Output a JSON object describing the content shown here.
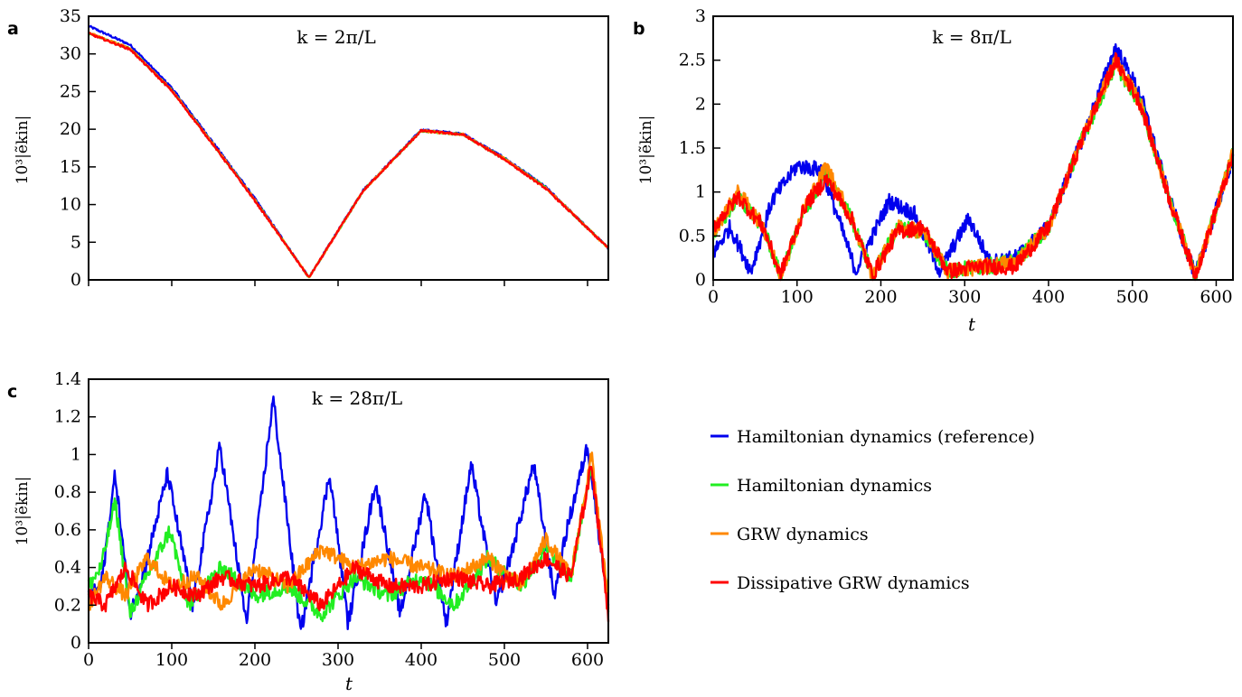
{
  "legend": [
    {
      "label": "Hamiltonian dynamics (reference)",
      "color": "#0000ee"
    },
    {
      "label": "Hamiltonian dynamics",
      "color": "#22ee22"
    },
    {
      "label": "GRW dynamics",
      "color": "#ff8800"
    },
    {
      "label": "Dissipative GRW dynamics",
      "color": "#ff0000"
    }
  ],
  "chart_data": [
    {
      "panel": "a",
      "type": "line",
      "annotation": "k = 2π/L",
      "ylabel": "10³|ẽkin|",
      "xlabel": "",
      "xlim": [
        0,
        625
      ],
      "ylim": [
        0,
        35
      ],
      "yticks": [
        0,
        5,
        10,
        15,
        20,
        25,
        30,
        35
      ],
      "xticks_labeled": false,
      "series": [
        {
          "name": "Hamiltonian dynamics (reference)",
          "color": "#0000ee",
          "x": [
            0,
            50,
            100,
            150,
            200,
            265,
            330,
            400,
            450,
            500,
            550,
            625
          ],
          "y": [
            33.7,
            31.2,
            25.5,
            18.2,
            10.8,
            0.3,
            11.9,
            19.9,
            19.4,
            16.2,
            12.3,
            4.2
          ]
        },
        {
          "name": "Hamiltonian dynamics",
          "color": "#22ee22",
          "x": [
            0,
            50,
            100,
            150,
            200,
            265,
            330,
            400,
            450,
            500,
            550,
            625
          ],
          "y": [
            32.8,
            30.7,
            25.2,
            18.0,
            10.6,
            0.3,
            11.8,
            19.8,
            19.3,
            16.1,
            12.2,
            4.2
          ]
        },
        {
          "name": "GRW dynamics",
          "color": "#ff8800",
          "x": [
            0,
            50,
            100,
            150,
            200,
            265,
            330,
            400,
            450,
            500,
            550,
            625
          ],
          "y": [
            32.8,
            30.7,
            25.2,
            18.0,
            10.6,
            0.3,
            11.8,
            19.8,
            19.3,
            16.1,
            12.2,
            4.2
          ]
        },
        {
          "name": "Dissipative GRW dynamics",
          "color": "#ff0000",
          "x": [
            0,
            50,
            100,
            150,
            200,
            265,
            330,
            400,
            450,
            500,
            550,
            625
          ],
          "y": [
            32.7,
            30.6,
            25.1,
            17.9,
            10.5,
            0.3,
            11.8,
            19.8,
            19.3,
            16.0,
            12.1,
            4.2
          ]
        }
      ]
    },
    {
      "panel": "b",
      "type": "line",
      "annotation": "k = 8π/L",
      "ylabel": "10³|ẽkin|",
      "xlabel": "t",
      "xlim": [
        0,
        620
      ],
      "ylim": [
        0,
        3
      ],
      "yticks": [
        0,
        0.5,
        1,
        1.5,
        2,
        2.5,
        3
      ],
      "xticks": [
        0,
        100,
        200,
        300,
        400,
        500,
        600
      ],
      "xticks_labeled": true,
      "series": [
        {
          "name": "Hamiltonian dynamics (reference)",
          "color": "#0000ee",
          "x": [
            0,
            20,
            45,
            70,
            100,
            130,
            170,
            210,
            240,
            270,
            305,
            330,
            360,
            400,
            440,
            480,
            510,
            545,
            575,
            600,
            620
          ],
          "y": [
            0.3,
            0.6,
            0.1,
            0.9,
            1.3,
            1.25,
            0.1,
            0.9,
            0.75,
            0.1,
            0.7,
            0.2,
            0.25,
            0.6,
            1.6,
            2.65,
            2.1,
            0.9,
            0.05,
            0.8,
            1.4
          ]
        },
        {
          "name": "Hamiltonian dynamics",
          "color": "#22ee22",
          "x": [
            0,
            30,
            60,
            80,
            110,
            135,
            165,
            190,
            220,
            250,
            280,
            320,
            360,
            400,
            440,
            480,
            510,
            545,
            575,
            600,
            620
          ],
          "y": [
            0.5,
            0.95,
            0.6,
            0.05,
            0.8,
            1.2,
            0.7,
            0.05,
            0.6,
            0.55,
            0.1,
            0.15,
            0.2,
            0.6,
            1.6,
            2.45,
            2.0,
            0.9,
            0.05,
            0.8,
            1.45
          ]
        },
        {
          "name": "GRW dynamics",
          "color": "#ff8800",
          "x": [
            0,
            30,
            60,
            80,
            110,
            135,
            165,
            190,
            220,
            250,
            280,
            320,
            360,
            400,
            440,
            480,
            510,
            545,
            575,
            600,
            620
          ],
          "y": [
            0.55,
            1.0,
            0.6,
            0.05,
            0.85,
            1.3,
            0.7,
            0.05,
            0.6,
            0.55,
            0.1,
            0.15,
            0.2,
            0.6,
            1.6,
            2.5,
            2.0,
            0.9,
            0.05,
            0.8,
            1.45
          ]
        },
        {
          "name": "Dissipative GRW dynamics",
          "color": "#ff0000",
          "x": [
            0,
            30,
            60,
            80,
            110,
            135,
            165,
            190,
            220,
            250,
            280,
            320,
            360,
            400,
            440,
            480,
            510,
            545,
            575,
            600,
            620
          ],
          "y": [
            0.6,
            0.95,
            0.6,
            0.05,
            0.85,
            1.15,
            0.7,
            0.05,
            0.55,
            0.6,
            0.1,
            0.15,
            0.15,
            0.6,
            1.6,
            2.5,
            2.0,
            0.9,
            0.05,
            0.8,
            1.4
          ]
        }
      ]
    },
    {
      "panel": "c",
      "type": "line",
      "annotation": "k = 28π/L",
      "ylabel": "10³|ẽkin|",
      "xlabel": "t",
      "xlim": [
        0,
        625
      ],
      "ylim": [
        0,
        1.4
      ],
      "yticks": [
        0,
        0.2,
        0.4,
        0.6,
        0.8,
        1,
        1.2,
        1.4
      ],
      "xticks": [
        0,
        100,
        200,
        300,
        400,
        500,
        600
      ],
      "xticks_labeled": true,
      "series": [
        {
          "name": "Hamiltonian dynamics (reference)",
          "color": "#0000ee",
          "x": [
            0,
            15,
            32,
            50,
            68,
            95,
            125,
            158,
            190,
            222,
            255,
            290,
            312,
            345,
            375,
            405,
            430,
            460,
            490,
            510,
            535,
            560,
            575,
            600,
            625
          ],
          "y": [
            0.25,
            0.3,
            0.9,
            0.15,
            0.4,
            0.9,
            0.2,
            1.05,
            0.1,
            1.3,
            0.05,
            0.9,
            0.1,
            0.85,
            0.15,
            0.8,
            0.1,
            0.95,
            0.2,
            0.5,
            0.95,
            0.25,
            0.6,
            1.05,
            0.2
          ]
        },
        {
          "name": "Hamiltonian dynamics",
          "color": "#22ee22",
          "x": [
            0,
            15,
            32,
            50,
            70,
            98,
            120,
            160,
            200,
            240,
            280,
            320,
            360,
            400,
            440,
            480,
            520,
            550,
            580,
            605,
            625
          ],
          "y": [
            0.3,
            0.4,
            0.75,
            0.15,
            0.35,
            0.6,
            0.2,
            0.4,
            0.25,
            0.3,
            0.15,
            0.35,
            0.25,
            0.35,
            0.2,
            0.45,
            0.3,
            0.5,
            0.35,
            0.95,
            0.2
          ]
        },
        {
          "name": "GRW dynamics",
          "color": "#ff8800",
          "x": [
            0,
            20,
            45,
            70,
            100,
            130,
            160,
            200,
            240,
            280,
            320,
            360,
            400,
            440,
            480,
            520,
            550,
            580,
            605,
            625
          ],
          "y": [
            0.2,
            0.35,
            0.25,
            0.45,
            0.3,
            0.35,
            0.2,
            0.4,
            0.3,
            0.5,
            0.4,
            0.45,
            0.4,
            0.35,
            0.45,
            0.3,
            0.55,
            0.35,
            1.0,
            0.2
          ]
        },
        {
          "name": "Dissipative GRW dynamics",
          "color": "#ff0000",
          "x": [
            0,
            20,
            45,
            70,
            100,
            130,
            160,
            200,
            240,
            280,
            320,
            360,
            400,
            440,
            480,
            520,
            550,
            580,
            605,
            625
          ],
          "y": [
            0.25,
            0.2,
            0.4,
            0.2,
            0.3,
            0.25,
            0.35,
            0.3,
            0.35,
            0.2,
            0.4,
            0.3,
            0.3,
            0.35,
            0.3,
            0.35,
            0.45,
            0.35,
            0.95,
            0.15
          ]
        }
      ]
    }
  ]
}
